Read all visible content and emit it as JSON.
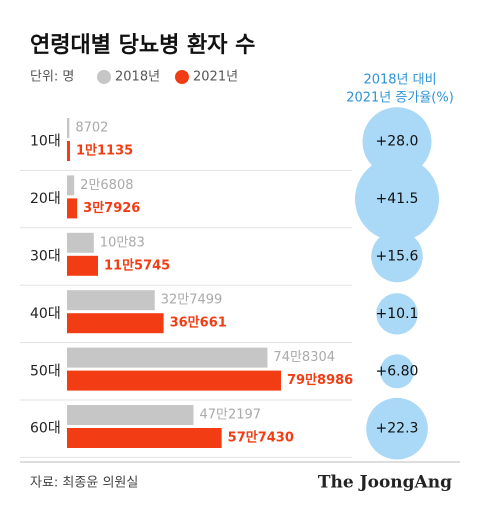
{
  "chart_data": {
    "type": "bar",
    "orientation": "horizontal",
    "title": "연령대별 당뇨병 환자 수",
    "unit_label": "단위: 명",
    "categories": [
      "10대",
      "20대",
      "30대",
      "40대",
      "50대",
      "60대"
    ],
    "series": [
      {
        "name": "2018년",
        "color": "#c6c6c6",
        "label_color": "#aaaaaa",
        "values": [
          8702,
          26808,
          100083,
          327499,
          748304,
          472197
        ],
        "value_labels": [
          "8702",
          "2만6808",
          "10만83",
          "32만7499",
          "74만8304",
          "47만2197"
        ]
      },
      {
        "name": "2021년",
        "color": "#f23d14",
        "label_color": "#f23d14",
        "values": [
          11135,
          37926,
          115745,
          360661,
          798986,
          577430
        ],
        "value_labels": [
          "1만1135",
          "3만7926",
          "11만5745",
          "36만661",
          "79만8986",
          "57만7430"
        ]
      }
    ],
    "growth": {
      "title": [
        "2018년 대비",
        "2021년 증가율(%)"
      ],
      "color": "#a9d9f6",
      "title_color": "#2e93d6",
      "values": [
        28.0,
        41.5,
        15.6,
        10.1,
        6.8,
        22.3
      ],
      "value_labels": [
        "+28.0",
        "+41.5",
        "+15.6",
        "+10.1",
        "+6.80",
        "+22.3"
      ]
    },
    "source": "자료: 최종윤 의원실",
    "brand": "The JoongAng"
  }
}
